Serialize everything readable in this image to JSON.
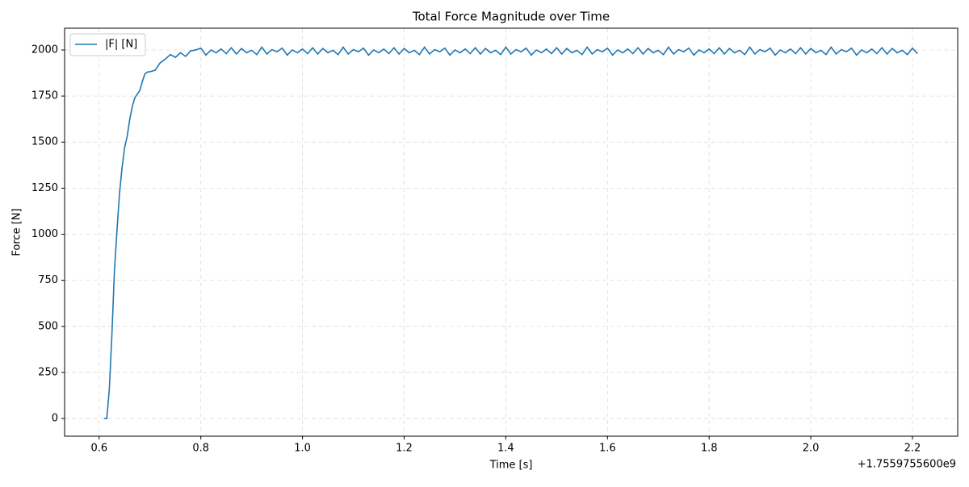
{
  "chart_data": {
    "type": "line",
    "title": "Total Force Magnitude over Time",
    "x_label": "Time [s]",
    "y_label": "Force [N]",
    "x_offset_label": "+1.7559755600e9",
    "legend": "upper left",
    "grid": true,
    "xlim": [
      0.532,
      2.289
    ],
    "ylim": [
      -96,
      2118
    ],
    "xticks": [
      0.6,
      0.8,
      {
        "value": 1,
        "label": "1.0"
      },
      1.2,
      1.4,
      1.6,
      1.8,
      {
        "value": 2,
        "label": "2.0"
      },
      2.2
    ],
    "yticks": [
      0,
      250,
      500,
      750,
      1000,
      1250,
      1500,
      1750,
      2000
    ],
    "x": [
      0.61,
      0.615,
      0.62,
      0.625,
      0.63,
      0.635,
      0.64,
      0.645,
      0.65,
      0.655,
      0.66,
      0.665,
      0.67,
      0.675,
      0.68,
      0.685,
      0.69,
      0.695,
      0.7,
      0.71,
      0.72,
      0.73,
      0.74,
      0.75,
      0.76,
      0.77,
      0.78,
      0.79,
      0.8,
      0.81,
      0.82,
      0.83,
      0.84,
      0.85,
      0.86,
      0.87,
      0.88,
      0.89,
      0.9,
      0.91,
      0.92,
      0.93,
      0.94,
      0.95,
      0.96,
      0.97,
      0.98,
      0.99,
      1.0,
      1.01,
      1.02,
      1.03,
      1.04,
      1.05,
      1.06,
      1.07,
      1.08,
      1.09,
      1.1,
      1.11,
      1.12,
      1.13,
      1.14,
      1.15,
      1.16,
      1.17,
      1.18,
      1.19,
      1.2,
      1.21,
      1.22,
      1.23,
      1.24,
      1.25,
      1.26,
      1.27,
      1.28,
      1.29,
      1.3,
      1.31,
      1.32,
      1.33,
      1.34,
      1.35,
      1.36,
      1.37,
      1.38,
      1.39,
      1.4,
      1.41,
      1.42,
      1.43,
      1.44,
      1.45,
      1.46,
      1.47,
      1.48,
      1.49,
      1.5,
      1.51,
      1.52,
      1.53,
      1.54,
      1.55,
      1.56,
      1.57,
      1.58,
      1.59,
      1.6,
      1.61,
      1.62,
      1.63,
      1.64,
      1.65,
      1.66,
      1.67,
      1.68,
      1.69,
      1.7,
      1.71,
      1.72,
      1.73,
      1.74,
      1.75,
      1.76,
      1.77,
      1.78,
      1.79,
      1.8,
      1.81,
      1.82,
      1.83,
      1.84,
      1.85,
      1.86,
      1.87,
      1.88,
      1.89,
      1.9,
      1.91,
      1.92,
      1.93,
      1.94,
      1.95,
      1.96,
      1.97,
      1.98,
      1.99,
      2.0,
      2.01,
      2.02,
      2.03,
      2.04,
      2.05,
      2.06,
      2.07,
      2.08,
      2.09,
      2.1,
      2.11,
      2.12,
      2.13,
      2.14,
      2.15,
      2.16,
      2.17,
      2.18,
      2.19,
      2.2,
      2.21
    ],
    "series": [
      {
        "name": "|F| [N]",
        "color": "#1f77b4",
        "values": [
          0,
          0,
          160,
          450,
          800,
          1020,
          1220,
          1360,
          1470,
          1530,
          1620,
          1690,
          1740,
          1760,
          1780,
          1830,
          1870,
          1880,
          1882,
          1890,
          1930,
          1950,
          1975,
          1960,
          1985,
          1965,
          1995,
          2000,
          2010,
          1972,
          2000,
          1985,
          2005,
          1980,
          2012,
          1978,
          2008,
          1985,
          1998,
          1975,
          2015,
          1978,
          2002,
          1990,
          2010,
          1972,
          2000,
          1985,
          2005,
          1980,
          2012,
          1978,
          2008,
          1985,
          1998,
          1975,
          2015,
          1978,
          2002,
          1990,
          2010,
          1972,
          2000,
          1985,
          2005,
          1980,
          2012,
          1978,
          2008,
          1985,
          1998,
          1975,
          2015,
          1978,
          2002,
          1990,
          2010,
          1972,
          2000,
          1985,
          2005,
          1980,
          2012,
          1978,
          2008,
          1985,
          1998,
          1975,
          2015,
          1978,
          2002,
          1990,
          2010,
          1972,
          2000,
          1985,
          2005,
          1980,
          2012,
          1978,
          2008,
          1985,
          1998,
          1975,
          2015,
          1978,
          2002,
          1990,
          2010,
          1972,
          2000,
          1985,
          2005,
          1980,
          2012,
          1978,
          2008,
          1985,
          1998,
          1975,
          2015,
          1978,
          2002,
          1990,
          2010,
          1972,
          2000,
          1985,
          2005,
          1980,
          2012,
          1978,
          2008,
          1985,
          1998,
          1975,
          2015,
          1978,
          2002,
          1990,
          2010,
          1972,
          2000,
          1985,
          2005,
          1980,
          2012,
          1978,
          2008,
          1985,
          1998,
          1975,
          2015,
          1978,
          2002,
          1990,
          2010,
          1972,
          2000,
          1985,
          2005,
          1980,
          2012,
          1978,
          2008,
          1985,
          1998,
          1975,
          2010,
          1980
        ]
      }
    ]
  }
}
